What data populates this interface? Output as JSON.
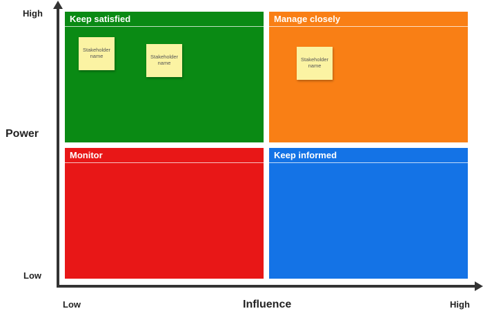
{
  "axes": {
    "y_title": "Power",
    "y_high": "High",
    "y_low": "Low",
    "x_title": "Influence",
    "x_low": "Low",
    "x_high": "High",
    "color": "#333333"
  },
  "quadrants": [
    {
      "title": "Keep satisfied",
      "color": "#0a8a14"
    },
    {
      "title": "Manage closely",
      "color": "#f97f15"
    },
    {
      "title": "Monitor",
      "color": "#e81717"
    },
    {
      "title": "Keep informed",
      "color": "#1473e6"
    }
  ],
  "sticky_notes": [
    {
      "text": "Stakeholder name",
      "quadrant": "Keep satisfied"
    },
    {
      "text": "Stakeholder name",
      "quadrant": "Keep satisfied"
    },
    {
      "text": "Stakeholder name",
      "quadrant": "Manage closely"
    }
  ],
  "sticky_color": "#fbf3a3"
}
